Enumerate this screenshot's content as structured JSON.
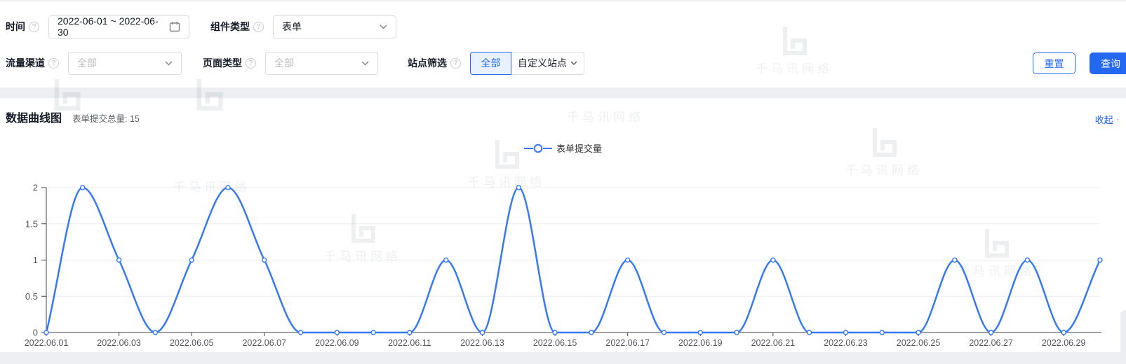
{
  "watermark": {
    "text": "千马讯网络"
  },
  "filters": {
    "time": {
      "label": "时间",
      "value": "2022-06-01 ~ 2022-06-30"
    },
    "component_type": {
      "label": "组件类型",
      "value": "表单"
    },
    "traffic_channel": {
      "label": "流量渠道",
      "placeholder": "全部"
    },
    "page_type": {
      "label": "页面类型",
      "placeholder": "全部"
    },
    "site_filter": {
      "label": "站点筛选",
      "options": [
        "全部",
        "自定义站点"
      ],
      "selected": "全部"
    }
  },
  "actions": {
    "reset": "重置",
    "query": "查询"
  },
  "chart_section": {
    "title": "数据曲线图",
    "total": "表单提交总量: 15",
    "collapse": "收起",
    "legend": "表单提交量"
  },
  "colors": {
    "accent": "#2468f2",
    "line": "#3679f2"
  },
  "chart_data": {
    "type": "line",
    "smooth": true,
    "title": "数据曲线图",
    "x": [
      "2022.06.01",
      "2022.06.02",
      "2022.06.03",
      "2022.06.04",
      "2022.06.05",
      "2022.06.06",
      "2022.06.07",
      "2022.06.08",
      "2022.06.09",
      "2022.06.10",
      "2022.06.11",
      "2022.06.12",
      "2022.06.13",
      "2022.06.14",
      "2022.06.15",
      "2022.06.16",
      "2022.06.17",
      "2022.06.18",
      "2022.06.19",
      "2022.06.20",
      "2022.06.21",
      "2022.06.22",
      "2022.06.23",
      "2022.06.24",
      "2022.06.25",
      "2022.06.26",
      "2022.06.27",
      "2022.06.28",
      "2022.06.29",
      "2022.06.30"
    ],
    "series": [
      {
        "name": "表单提交量",
        "values": [
          0,
          2,
          1,
          0,
          1,
          2,
          1,
          0,
          0,
          0,
          0,
          1,
          0,
          2,
          0,
          0,
          1,
          0,
          0,
          0,
          1,
          0,
          0,
          0,
          0,
          1,
          0,
          1,
          0,
          1
        ]
      }
    ],
    "total": 15,
    "ylim": [
      0,
      2
    ],
    "yticks": [
      0,
      0.5,
      1,
      1.5,
      2
    ],
    "x_label_every": 2,
    "grid": true,
    "legend_position": "top-center"
  }
}
